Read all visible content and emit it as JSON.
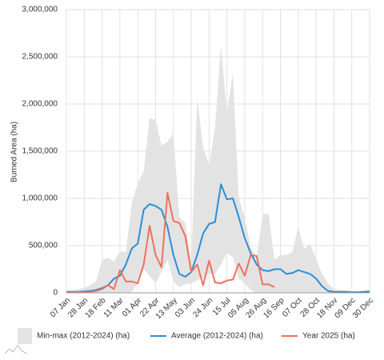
{
  "chart_data": {
    "type": "line",
    "y_label": "Burned Area (ha)",
    "categories": [
      "07 Jan",
      null,
      null,
      "28 Jan",
      null,
      null,
      "18 Feb",
      null,
      null,
      "11 Mar",
      null,
      null,
      "01 Apr",
      null,
      null,
      "22 Apr",
      null,
      null,
      "13 May",
      null,
      null,
      "03 Jun",
      null,
      null,
      "24 Jun",
      null,
      null,
      "15 Jul",
      null,
      null,
      "05 Aug",
      null,
      null,
      "26 Aug",
      null,
      null,
      "16 Sep",
      null,
      null,
      "07 Oct",
      null,
      null,
      "28 Oct",
      null,
      null,
      "18 Nov",
      null,
      null,
      "09 Dec",
      null,
      null,
      "30 Dec"
    ],
    "band": {
      "name": "Min-max (2012-2024) (ha)",
      "color": "#e3e3e3",
      "lower": [
        0,
        0,
        0,
        0,
        0,
        0,
        0,
        0,
        0,
        0,
        0,
        10000,
        100000,
        250000,
        180000,
        100000,
        220000,
        350000,
        120000,
        60000,
        90000,
        100000,
        130000,
        160000,
        200000,
        200000,
        300000,
        420000,
        380000,
        150000,
        100000,
        30000,
        0,
        0,
        0,
        0,
        0,
        0,
        0,
        0,
        0,
        0,
        0,
        0,
        0,
        0,
        0,
        0,
        0,
        0,
        0,
        0
      ],
      "upper": [
        30000,
        30000,
        40000,
        50000,
        80000,
        120000,
        350000,
        370000,
        330000,
        440000,
        430000,
        950000,
        1160000,
        1290000,
        1850000,
        1830000,
        1560000,
        1600000,
        1690000,
        800000,
        740000,
        320000,
        2060000,
        1540000,
        1350000,
        1750000,
        2620000,
        1900000,
        2330000,
        1000000,
        800000,
        480000,
        380000,
        830000,
        840000,
        350000,
        400000,
        400000,
        430000,
        700000,
        460000,
        520000,
        360000,
        200000,
        100000,
        40000,
        30000,
        30000,
        20000,
        20000,
        20000,
        30000
      ]
    },
    "series": [
      {
        "name": "Average (2012-2024) (ha)",
        "color": "#2a8fd6",
        "values": [
          10000,
          10000,
          10000,
          15000,
          20000,
          30000,
          50000,
          80000,
          150000,
          180000,
          300000,
          470000,
          520000,
          880000,
          940000,
          920000,
          880000,
          700000,
          400000,
          200000,
          170000,
          220000,
          400000,
          630000,
          730000,
          750000,
          1150000,
          990000,
          1000000,
          800000,
          580000,
          420000,
          300000,
          240000,
          230000,
          250000,
          250000,
          200000,
          210000,
          240000,
          220000,
          200000,
          150000,
          70000,
          20000,
          10000,
          10000,
          10000,
          5000,
          5000,
          10000,
          15000
        ]
      },
      {
        "name": "Year 2025 (ha)",
        "color": "#f0705f",
        "values": [
          5000,
          5000,
          5000,
          5000,
          10000,
          20000,
          40000,
          80000,
          40000,
          240000,
          120000,
          120000,
          100000,
          300000,
          710000,
          400000,
          270000,
          1060000,
          760000,
          740000,
          600000,
          220000,
          300000,
          80000,
          340000,
          110000,
          100000,
          130000,
          140000,
          310000,
          180000,
          400000,
          390000,
          90000,
          90000,
          60000,
          null,
          null,
          null,
          null,
          null,
          null,
          null,
          null,
          null,
          null,
          null,
          null,
          null,
          null,
          null,
          null
        ]
      }
    ],
    "ylim": [
      0,
      3000000
    ],
    "yticks": [
      0,
      {
        "value": 500000,
        "label": "500,000"
      },
      {
        "value": 1000000,
        "label": "1,000,000"
      },
      {
        "value": 1500000,
        "label": "1,500,000"
      },
      {
        "value": 2000000,
        "label": "2,000,000"
      },
      {
        "value": 2500000,
        "label": "2,500,000"
      },
      {
        "value": 3000000,
        "label": "3,000,000"
      }
    ],
    "grid": true
  }
}
